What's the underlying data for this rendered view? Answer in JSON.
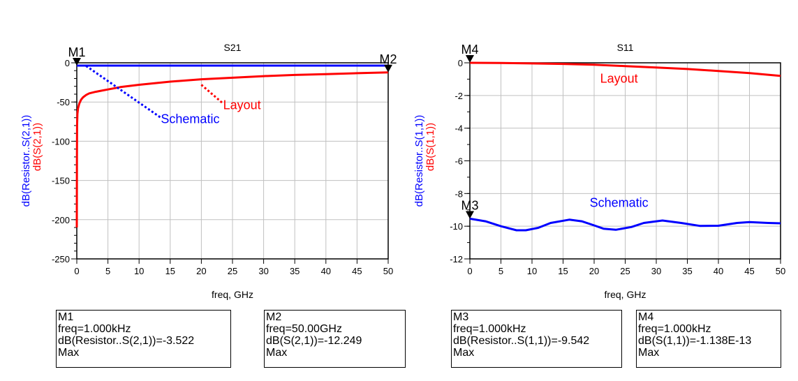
{
  "colors": {
    "schematic": "#0000ff",
    "layout": "#ff0000",
    "grid": "#c0c0c0",
    "axis": "#000000"
  },
  "chart_data": [
    {
      "type": "line",
      "title": "S21",
      "xlabel": "freq, GHz",
      "ylabel_lines": [
        "dB(Resistor..S(2,1))",
        "dB(S(2,1))"
      ],
      "xlim": [
        0,
        50
      ],
      "ylim": [
        -250,
        0
      ],
      "xticks": [
        "0",
        "5",
        "10",
        "15",
        "20",
        "25",
        "30",
        "35",
        "40",
        "45",
        "50"
      ],
      "yticks": [
        "0",
        "-50",
        "-100",
        "-150",
        "-200",
        "-250"
      ],
      "grid": true,
      "series": [
        {
          "name": "Schematic",
          "color": "#0000ff",
          "x": [
            0,
            50
          ],
          "y": [
            -3.522,
            -3.522
          ]
        },
        {
          "name": "Layout",
          "color": "#ff0000",
          "x": [
            0,
            0.02,
            0.05,
            0.1,
            0.2,
            0.4,
            0.7,
            1,
            1.5,
            2,
            3,
            4,
            5,
            7,
            10,
            15,
            20,
            25,
            30,
            35,
            40,
            45,
            50
          ],
          "y": [
            -210,
            -120,
            -80,
            -65,
            -58,
            -52,
            -47,
            -44,
            -41,
            -39,
            -37,
            -35.5,
            -34,
            -31,
            -28,
            -24,
            -21,
            -19,
            -17,
            -15.5,
            -14.5,
            -13.3,
            -12.249
          ]
        }
      ],
      "annotations": [
        {
          "text": "Schematic",
          "color": "#0000ff",
          "at": [
            13.5,
            -70
          ],
          "points_to": [
            1.5,
            -4
          ]
        },
        {
          "text": "Layout",
          "color": "#ff0000",
          "at": [
            23.5,
            -52
          ],
          "points_to": [
            20,
            -28
          ]
        }
      ],
      "markers": [
        {
          "name": "M1",
          "x": 0,
          "y": -3.522,
          "lines": [
            "M1",
            "freq=1.000kHz",
            "dB(Resistor..S(2,1))=-3.522",
            "Max"
          ]
        },
        {
          "name": "M2",
          "x": 50,
          "y": -12.249,
          "lines": [
            "M2",
            "freq=50.00GHz",
            "dB(S(2,1))=-12.249",
            "Max"
          ]
        }
      ]
    },
    {
      "type": "line",
      "title": "S11",
      "xlabel": "freq, GHz",
      "ylabel_lines": [
        "dB(Resistor..S(1,1))",
        "dB(S(1,1))"
      ],
      "xlim": [
        0,
        50
      ],
      "ylim": [
        -12,
        0
      ],
      "xticks": [
        "0",
        "5",
        "10",
        "15",
        "20",
        "25",
        "30",
        "35",
        "40",
        "45",
        "50"
      ],
      "yticks": [
        "0",
        "-2",
        "-4",
        "-6",
        "-8",
        "-10",
        "-12"
      ],
      "grid": true,
      "series": [
        {
          "name": "Schematic",
          "color": "#0000ff",
          "x": [
            0,
            2.5,
            5,
            7.5,
            9,
            11,
            13,
            16,
            18,
            20,
            21.5,
            23.5,
            26,
            28,
            31,
            34,
            37,
            40,
            43,
            45,
            48,
            50
          ],
          "y": [
            -9.542,
            -9.7,
            -10.0,
            -10.25,
            -10.25,
            -10.1,
            -9.8,
            -9.6,
            -9.7,
            -9.95,
            -10.15,
            -10.22,
            -10.05,
            -9.8,
            -9.65,
            -9.8,
            -9.98,
            -9.97,
            -9.8,
            -9.75,
            -9.8,
            -9.82
          ]
        },
        {
          "name": "Layout",
          "color": "#ff0000",
          "x": [
            0,
            5,
            10,
            15,
            20,
            25,
            30,
            35,
            40,
            45,
            50
          ],
          "y": [
            0,
            -0.01,
            -0.04,
            -0.07,
            -0.12,
            -0.2,
            -0.29,
            -0.38,
            -0.5,
            -0.63,
            -0.8
          ]
        }
      ],
      "annotations": [
        {
          "text": "Layout",
          "color": "#ff0000",
          "at": [
            24,
            -1.0
          ]
        },
        {
          "text": "Schematic",
          "color": "#0000ff",
          "at": [
            24,
            -8.6
          ]
        }
      ],
      "markers": [
        {
          "name": "M3",
          "x": 0,
          "y": -9.542,
          "lines": [
            "M3",
            "freq=1.000kHz",
            "dB(Resistor..S(1,1))=-9.542",
            "Max"
          ]
        },
        {
          "name": "M4",
          "x": 0,
          "y": 0,
          "lines": [
            "M4",
            "freq=1.000kHz",
            "dB(S(1,1))=-1.138E-13",
            "Max"
          ]
        }
      ]
    }
  ]
}
